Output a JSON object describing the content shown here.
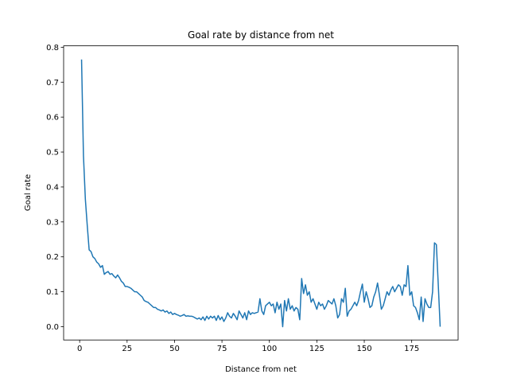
{
  "chart_data": {
    "type": "line",
    "title": "Goal rate by distance from net",
    "x_label": "Distance from net",
    "y_label": "Goal rate",
    "x": [
      1,
      2,
      3,
      4,
      5,
      6,
      7,
      8,
      9,
      10,
      11,
      12,
      13,
      14,
      15,
      16,
      17,
      18,
      19,
      20,
      21,
      22,
      23,
      24,
      25,
      26,
      27,
      28,
      29,
      30,
      31,
      32,
      33,
      34,
      35,
      36,
      37,
      38,
      39,
      40,
      41,
      42,
      43,
      44,
      45,
      46,
      47,
      48,
      49,
      50,
      51,
      52,
      53,
      54,
      55,
      56,
      57,
      58,
      59,
      60,
      61,
      62,
      63,
      64,
      65,
      66,
      67,
      68,
      69,
      70,
      71,
      72,
      73,
      74,
      75,
      76,
      77,
      78,
      79,
      80,
      81,
      82,
      83,
      84,
      85,
      86,
      87,
      88,
      89,
      90,
      91,
      92,
      93,
      94,
      95,
      96,
      97,
      98,
      99,
      100,
      101,
      102,
      103,
      104,
      105,
      106,
      107,
      108,
      109,
      110,
      111,
      112,
      113,
      114,
      115,
      116,
      117,
      118,
      119,
      120,
      121,
      122,
      123,
      124,
      125,
      126,
      127,
      128,
      129,
      130,
      131,
      132,
      133,
      134,
      135,
      136,
      137,
      138,
      139,
      140,
      141,
      142,
      143,
      144,
      145,
      146,
      147,
      148,
      149,
      150,
      151,
      152,
      153,
      154,
      155,
      156,
      157,
      158,
      159,
      160,
      161,
      162,
      163,
      164,
      165,
      166,
      167,
      168,
      169,
      170,
      171,
      172,
      173,
      174,
      175,
      176,
      177,
      178,
      179,
      180,
      181,
      182,
      183,
      184,
      185,
      186,
      187,
      188,
      189,
      190
    ],
    "series": [
      {
        "name": "Goal rate",
        "color": "#1f77b4",
        "values": [
          0.765,
          0.49,
          0.365,
          0.29,
          0.22,
          0.215,
          0.2,
          0.195,
          0.185,
          0.18,
          0.17,
          0.175,
          0.15,
          0.155,
          0.158,
          0.15,
          0.152,
          0.145,
          0.14,
          0.148,
          0.14,
          0.13,
          0.125,
          0.115,
          0.115,
          0.113,
          0.11,
          0.105,
          0.1,
          0.1,
          0.095,
          0.09,
          0.085,
          0.075,
          0.072,
          0.07,
          0.065,
          0.06,
          0.055,
          0.055,
          0.05,
          0.048,
          0.045,
          0.048,
          0.042,
          0.045,
          0.038,
          0.042,
          0.035,
          0.038,
          0.035,
          0.033,
          0.03,
          0.032,
          0.035,
          0.03,
          0.031,
          0.03,
          0.03,
          0.028,
          0.025,
          0.022,
          0.025,
          0.02,
          0.028,
          0.018,
          0.03,
          0.022,
          0.03,
          0.025,
          0.03,
          0.018,
          0.032,
          0.02,
          0.028,
          0.015,
          0.025,
          0.04,
          0.03,
          0.025,
          0.038,
          0.03,
          0.02,
          0.045,
          0.035,
          0.025,
          0.04,
          0.02,
          0.045,
          0.035,
          0.04,
          0.038,
          0.04,
          0.042,
          0.08,
          0.045,
          0.035,
          0.06,
          0.065,
          0.07,
          0.06,
          0.065,
          0.04,
          0.07,
          0.05,
          0.065,
          0.0,
          0.075,
          0.045,
          0.08,
          0.05,
          0.06,
          0.045,
          0.055,
          0.05,
          0.02,
          0.138,
          0.095,
          0.12,
          0.09,
          0.1,
          0.07,
          0.08,
          0.065,
          0.05,
          0.07,
          0.06,
          0.065,
          0.05,
          0.06,
          0.075,
          0.07,
          0.065,
          0.08,
          0.06,
          0.025,
          0.035,
          0.08,
          0.07,
          0.11,
          0.03,
          0.045,
          0.05,
          0.06,
          0.07,
          0.06,
          0.075,
          0.1,
          0.122,
          0.07,
          0.1,
          0.08,
          0.055,
          0.06,
          0.085,
          0.1,
          0.125,
          0.09,
          0.05,
          0.06,
          0.08,
          0.1,
          0.09,
          0.105,
          0.115,
          0.1,
          0.11,
          0.12,
          0.115,
          0.09,
          0.12,
          0.115,
          0.175,
          0.09,
          0.1,
          0.06,
          0.055,
          0.04,
          0.02,
          0.085,
          0.015,
          0.08,
          0.065,
          0.055,
          0.055,
          0.1,
          0.24,
          0.235,
          0.12,
          0.0
        ]
      }
    ],
    "xlim": [
      -8.45,
      199.45
    ],
    "ylim": [
      -0.038,
      0.804
    ],
    "xticks": [
      0,
      25,
      50,
      75,
      100,
      125,
      150,
      175
    ],
    "yticks": [
      {
        "value": 0,
        "label": "0.0"
      },
      0.1,
      0.2,
      0.3,
      0.4,
      0.5,
      0.6,
      0.7,
      0.8
    ],
    "grid": false
  }
}
